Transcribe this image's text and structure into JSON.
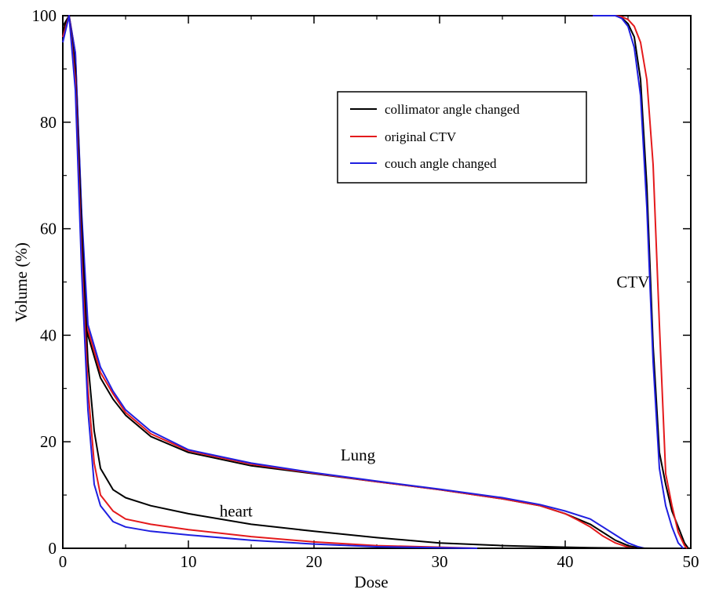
{
  "chart_data": {
    "type": "line",
    "title": "",
    "xlabel": "Dose",
    "ylabel": "Volume (%)",
    "xlim": [
      0,
      50
    ],
    "ylim": [
      0,
      100
    ],
    "xticks": [
      0,
      10,
      20,
      30,
      40,
      50
    ],
    "yticks": [
      0,
      20,
      40,
      60,
      80,
      100
    ],
    "grid": false,
    "legend_position": "upper-center",
    "legend": [
      {
        "name": "collimator angle changed",
        "color": "#000000"
      },
      {
        "name": "original CTV",
        "color": "#e41a1c"
      },
      {
        "name": "couch angle changed",
        "color": "#1f1fe0"
      }
    ],
    "annotations": [
      {
        "text": "CTV",
        "x": 45.4,
        "y": 49
      },
      {
        "text": "Lung",
        "x": 23.5,
        "y": 16.5
      },
      {
        "text": "heart",
        "x": 13.8,
        "y": 6
      }
    ],
    "structures": [
      {
        "structure": "CTV",
        "series": [
          {
            "name": "collimator angle changed",
            "color": "#000000",
            "points": [
              [
                42.2,
                100
              ],
              [
                44,
                100
              ],
              [
                44.5,
                99.6
              ],
              [
                45,
                98.5
              ],
              [
                45.5,
                96
              ],
              [
                46,
                88
              ],
              [
                46.5,
                68
              ],
              [
                47,
                38
              ],
              [
                47.5,
                18
              ],
              [
                48,
                12
              ],
              [
                48.5,
                7
              ],
              [
                49,
                4
              ],
              [
                49.5,
                1
              ],
              [
                49.8,
                0
              ]
            ]
          },
          {
            "name": "original CTV",
            "color": "#e41a1c",
            "points": [
              [
                42.2,
                100
              ],
              [
                44,
                100
              ],
              [
                44.5,
                99.8
              ],
              [
                45,
                99.3
              ],
              [
                45.5,
                98
              ],
              [
                46,
                95
              ],
              [
                46.5,
                88
              ],
              [
                47,
                72
              ],
              [
                47.5,
                42
              ],
              [
                48,
                14
              ],
              [
                48.5,
                8
              ],
              [
                49,
                3
              ],
              [
                49.5,
                0.5
              ],
              [
                49.7,
                0
              ]
            ]
          },
          {
            "name": "couch angle changed",
            "color": "#1f1fe0",
            "points": [
              [
                42.2,
                100
              ],
              [
                44,
                100
              ],
              [
                44.5,
                99.5
              ],
              [
                45,
                98
              ],
              [
                45.5,
                94
              ],
              [
                46,
                85
              ],
              [
                46.5,
                64
              ],
              [
                47,
                35
              ],
              [
                47.5,
                15
              ],
              [
                48,
                8
              ],
              [
                48.5,
                4
              ],
              [
                49,
                1
              ],
              [
                49.4,
                0
              ]
            ]
          }
        ]
      },
      {
        "structure": "Lung",
        "series": [
          {
            "name": "collimator angle changed",
            "color": "#000000",
            "points": [
              [
                0,
                98
              ],
              [
                0.5,
                100
              ],
              [
                1,
                92
              ],
              [
                1.5,
                62
              ],
              [
                2,
                40
              ],
              [
                3,
                32
              ],
              [
                4,
                28
              ],
              [
                5,
                25
              ],
              [
                7,
                21
              ],
              [
                10,
                18
              ],
              [
                15,
                15.5
              ],
              [
                20,
                14
              ],
              [
                25,
                12.5
              ],
              [
                30,
                11
              ],
              [
                35,
                9.3
              ],
              [
                38,
                8
              ],
              [
                40,
                6.5
              ],
              [
                42,
                4.5
              ],
              [
                43,
                3
              ],
              [
                44,
                1.5
              ],
              [
                45,
                0.5
              ],
              [
                46,
                0
              ]
            ]
          },
          {
            "name": "original CTV",
            "color": "#e41a1c",
            "points": [
              [
                0,
                97
              ],
              [
                0.5,
                100
              ],
              [
                1,
                93
              ],
              [
                1.5,
                62
              ],
              [
                2,
                41
              ],
              [
                3,
                33
              ],
              [
                4,
                29
              ],
              [
                5,
                25.5
              ],
              [
                7,
                21.5
              ],
              [
                10,
                18.3
              ],
              [
                15,
                15.8
              ],
              [
                20,
                14.1
              ],
              [
                25,
                12.5
              ],
              [
                30,
                11
              ],
              [
                35,
                9.3
              ],
              [
                38,
                8
              ],
              [
                40,
                6.5
              ],
              [
                41,
                5.3
              ],
              [
                42,
                4
              ],
              [
                43,
                2.3
              ],
              [
                44,
                1
              ],
              [
                45,
                0.2
              ],
              [
                45.6,
                0
              ]
            ]
          },
          {
            "name": "couch angle changed",
            "color": "#1f1fe0",
            "points": [
              [
                0,
                96
              ],
              [
                0.5,
                100
              ],
              [
                1,
                93
              ],
              [
                1.5,
                63
              ],
              [
                2,
                42
              ],
              [
                3,
                34
              ],
              [
                4,
                29.5
              ],
              [
                5,
                26
              ],
              [
                7,
                22
              ],
              [
                10,
                18.5
              ],
              [
                15,
                16
              ],
              [
                20,
                14.2
              ],
              [
                25,
                12.6
              ],
              [
                30,
                11.1
              ],
              [
                35,
                9.5
              ],
              [
                38,
                8.2
              ],
              [
                40,
                7
              ],
              [
                42,
                5.5
              ],
              [
                43,
                4
              ],
              [
                44,
                2.5
              ],
              [
                45,
                1
              ],
              [
                45.8,
                0.3
              ],
              [
                46.3,
                0
              ]
            ]
          }
        ]
      },
      {
        "structure": "heart",
        "series": [
          {
            "name": "collimator angle changed",
            "color": "#000000",
            "points": [
              [
                0,
                97
              ],
              [
                0.5,
                100
              ],
              [
                1,
                90
              ],
              [
                1.5,
                60
              ],
              [
                2,
                35
              ],
              [
                2.5,
                22
              ],
              [
                3,
                15
              ],
              [
                4,
                11
              ],
              [
                5,
                9.5
              ],
              [
                7,
                8
              ],
              [
                10,
                6.5
              ],
              [
                15,
                4.5
              ],
              [
                20,
                3.2
              ],
              [
                25,
                2
              ],
              [
                30,
                1
              ],
              [
                35,
                0.5
              ],
              [
                40,
                0.2
              ],
              [
                42,
                0.1
              ],
              [
                47,
                0
              ]
            ]
          },
          {
            "name": "original CTV",
            "color": "#e41a1c",
            "points": [
              [
                0,
                96
              ],
              [
                0.5,
                100
              ],
              [
                1,
                88
              ],
              [
                1.5,
                55
              ],
              [
                2,
                30
              ],
              [
                2.5,
                16
              ],
              [
                3,
                10
              ],
              [
                4,
                7
              ],
              [
                5,
                5.5
              ],
              [
                7,
                4.5
              ],
              [
                10,
                3.5
              ],
              [
                15,
                2.2
              ],
              [
                20,
                1.2
              ],
              [
                25,
                0.5
              ],
              [
                30,
                0.2
              ],
              [
                33,
                0
              ]
            ]
          },
          {
            "name": "couch angle changed",
            "color": "#1f1fe0",
            "points": [
              [
                0,
                95
              ],
              [
                0.5,
                100
              ],
              [
                1,
                86
              ],
              [
                1.5,
                52
              ],
              [
                2,
                26
              ],
              [
                2.5,
                12
              ],
              [
                3,
                8
              ],
              [
                4,
                5
              ],
              [
                5,
                4
              ],
              [
                7,
                3.2
              ],
              [
                10,
                2.5
              ],
              [
                15,
                1.5
              ],
              [
                20,
                0.8
              ],
              [
                25,
                0.3
              ],
              [
                30,
                0.1
              ],
              [
                33,
                0
              ]
            ]
          }
        ]
      }
    ]
  }
}
